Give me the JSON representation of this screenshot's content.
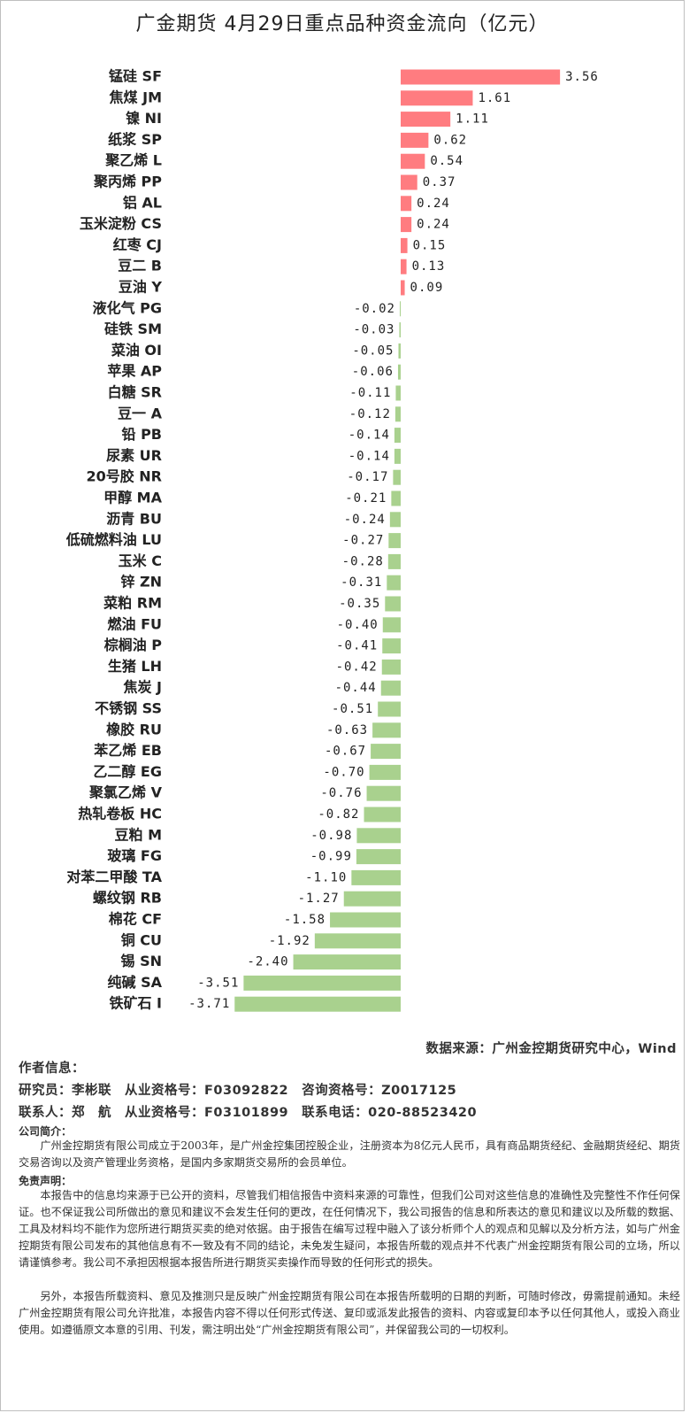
{
  "chart_data": {
    "type": "bar",
    "orientation": "horizontal",
    "title": "广金期货 4月29日重点品种资金流向（亿元）",
    "categories": [
      "锰硅 SF",
      "焦煤 JM",
      "镍 NI",
      "纸浆 SP",
      "聚乙烯 L",
      "聚丙烯 PP",
      "铝 AL",
      "玉米淀粉 CS",
      "红枣 CJ",
      "豆二 B",
      "豆油 Y",
      "液化气 PG",
      "硅铁 SM",
      "菜油 OI",
      "苹果 AP",
      "白糖 SR",
      "豆一 A",
      "铅 PB",
      "尿素 UR",
      "20号胶 NR",
      "甲醇 MA",
      "沥青 BU",
      "低硫燃料油 LU",
      "玉米 C",
      "锌 ZN",
      "菜粕 RM",
      "燃油 FU",
      "棕榈油 P",
      "生猪 LH",
      "焦炭 J",
      "不锈钢 SS",
      "橡胶 RU",
      "苯乙烯 EB",
      "乙二醇 EG",
      "聚氯乙烯 V",
      "热轧卷板 HC",
      "豆粕 M",
      "玻璃 FG",
      "对苯二甲酸 TA",
      "螺纹钢 RB",
      "棉花 CF",
      "铜 CU",
      "锡 SN",
      "纯碱 SA",
      "铁矿石 I"
    ],
    "values": [
      3.56,
      1.61,
      1.11,
      0.62,
      0.54,
      0.37,
      0.24,
      0.24,
      0.15,
      0.13,
      0.09,
      -0.02,
      -0.03,
      -0.05,
      -0.06,
      -0.11,
      -0.12,
      -0.14,
      -0.14,
      -0.17,
      -0.21,
      -0.24,
      -0.27,
      -0.28,
      -0.31,
      -0.35,
      -0.4,
      -0.41,
      -0.42,
      -0.44,
      -0.51,
      -0.63,
      -0.67,
      -0.7,
      -0.76,
      -0.82,
      -0.98,
      -0.99,
      -1.1,
      -1.27,
      -1.58,
      -1.92,
      -2.4,
      -3.51,
      -3.71
    ],
    "value_labels": [
      "3.56",
      "1.61",
      "1.11",
      "0.62",
      "0.54",
      "0.37",
      "0.24",
      "0.24",
      "0.15",
      "0.13",
      "0.09",
      "-0.02",
      "-0.03",
      "-0.05",
      "-0.06",
      "-0.11",
      "-0.12",
      "-0.14",
      "-0.14",
      "-0.17",
      "-0.21",
      "-0.24",
      "-0.27",
      "-0.28",
      "-0.31",
      "-0.35",
      "-0.40",
      "-0.41",
      "-0.42",
      "-0.44",
      "-0.51",
      "-0.63",
      "-0.67",
      "-0.70",
      "-0.76",
      "-0.82",
      "-0.98",
      "-0.99",
      "-1.10",
      "-1.27",
      "-1.58",
      "-1.92",
      "-2.40",
      "-3.51",
      "-3.71"
    ],
    "colors": {
      "positive": "#ff7c80",
      "negative": "#a9d18e"
    }
  },
  "footer": {
    "source": "数据来源：广州金控期货研究中心，Wind",
    "author_heading": "作者信息：",
    "researcher": "研究员：李彬联　从业资格号：F03092822　咨询资格号：Z0017125",
    "contact": "联系人：郑　航　从业资格号：F03101899　联系电话：020-88523420",
    "company_heading": "公司简介：",
    "company_text": "广州金控期货有限公司成立于2003年，是广州金控集团控股企业，注册资本为8亿元人民币，具有商品期货经纪、金融期货经纪、期货交易咨询以及资产管理业务资格，是国内多家期货交易所的会员单位。",
    "disclaimer_heading": "免责声明：",
    "disclaimer_1": "本报告中的信息均来源于已公开的资料，尽管我们相信报告中资料来源的可靠性，但我们公司对这些信息的准确性及完整性不作任何保证。也不保证我公司所做出的意见和建议不会发生任何的更改，在任何情况下，我公司报告的信息和所表达的意见和建议以及所载的数据、工具及材料均不能作为您所进行期货买卖的绝对依据。由于报告在编写过程中融入了该分析师个人的观点和见解以及分析方法，如与广州金控期货有限公司发布的其他信息有不一致及有不同的结论，未免发生疑问，本报告所载的观点并不代表广州金控期货有限公司的立场，所以请谨慎参考。我公司不承担因根据本报告所进行期货买卖操作而导致的任何形式的损失。",
    "disclaimer_2": "另外，本报告所载资料、意见及推测只是反映广州金控期货有限公司在本报告所载明的日期的判断，可随时修改，毋需提前通知。未经广州金控期货有限公司允许批准，本报告内容不得以任何形式传送、复印或派发此报告的资料、内容或复印本予以任何其他人，或投入商业使用。如遵循原文本意的引用、刊发，需注明出处“广州金控期货有限公司”，并保留我公司的一切权利。"
  }
}
